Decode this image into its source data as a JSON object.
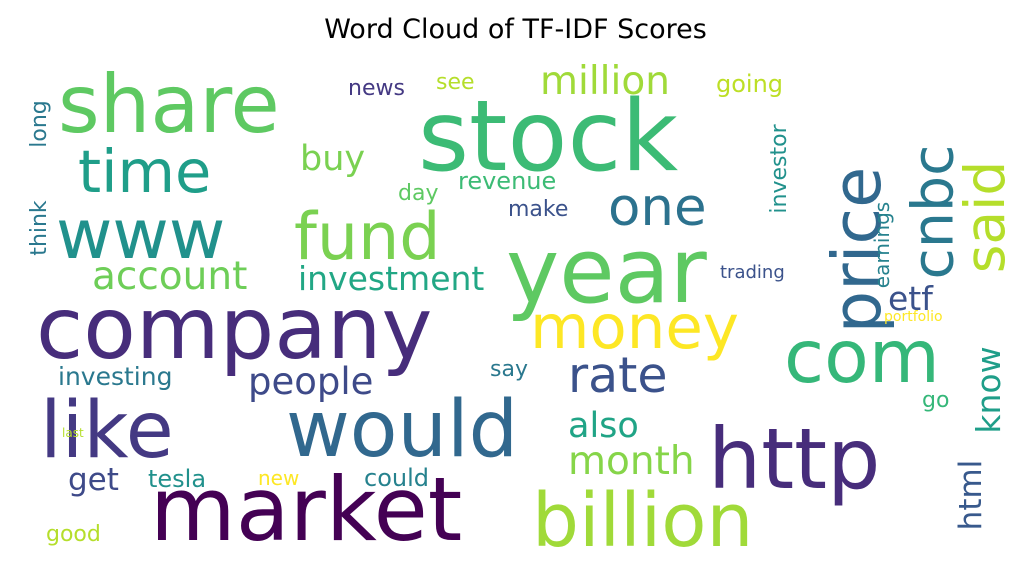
{
  "chart_data": {
    "type": "wordcloud",
    "title": "Word Cloud of TF-IDF Scores",
    "colormap": "viridis",
    "background": "#ffffff",
    "words": [
      {
        "text": "stock",
        "weight": 1.0,
        "color": "#3cbb75",
        "orientation": "horizontal"
      },
      {
        "text": "year",
        "weight": 0.92,
        "color": "#5ec962",
        "orientation": "horizontal"
      },
      {
        "text": "market",
        "weight": 0.9,
        "color": "#440154",
        "orientation": "horizontal"
      },
      {
        "text": "company",
        "weight": 0.88,
        "color": "#472d7b",
        "orientation": "horizontal"
      },
      {
        "text": "http",
        "weight": 0.86,
        "color": "#472d7b",
        "orientation": "horizontal"
      },
      {
        "text": "share",
        "weight": 0.82,
        "color": "#5ec962",
        "orientation": "horizontal"
      },
      {
        "text": "would",
        "weight": 0.8,
        "color": "#31688e",
        "orientation": "horizontal"
      },
      {
        "text": "like",
        "weight": 0.8,
        "color": "#443983",
        "orientation": "horizontal"
      },
      {
        "text": "billion",
        "weight": 0.76,
        "color": "#a0da39",
        "orientation": "horizontal"
      },
      {
        "text": "com",
        "weight": 0.74,
        "color": "#35b779",
        "orientation": "horizontal"
      },
      {
        "text": "www",
        "weight": 0.7,
        "color": "#21918c",
        "orientation": "horizontal"
      },
      {
        "text": "price",
        "weight": 0.68,
        "color": "#31688e",
        "orientation": "vertical"
      },
      {
        "text": "fund",
        "weight": 0.66,
        "color": "#7ad151",
        "orientation": "horizontal"
      },
      {
        "text": "money",
        "weight": 0.62,
        "color": "#fde725",
        "orientation": "horizontal"
      },
      {
        "text": "time",
        "weight": 0.6,
        "color": "#1f9e89",
        "orientation": "horizontal"
      },
      {
        "text": "cnbc",
        "weight": 0.58,
        "color": "#2a788e",
        "orientation": "vertical"
      },
      {
        "text": "said",
        "weight": 0.56,
        "color": "#b5de2b",
        "orientation": "vertical"
      },
      {
        "text": "one",
        "weight": 0.54,
        "color": "#2c728e",
        "orientation": "horizontal"
      },
      {
        "text": "rate",
        "weight": 0.5,
        "color": "#3b528b",
        "orientation": "horizontal"
      },
      {
        "text": "account",
        "weight": 0.4,
        "color": "#6ece58",
        "orientation": "horizontal"
      },
      {
        "text": "million",
        "weight": 0.4,
        "color": "#a0da39",
        "orientation": "horizontal"
      },
      {
        "text": "month",
        "weight": 0.4,
        "color": "#86d549",
        "orientation": "horizontal"
      },
      {
        "text": "people",
        "weight": 0.38,
        "color": "#3e4a89",
        "orientation": "horizontal"
      },
      {
        "text": "buy",
        "weight": 0.36,
        "color": "#7ad151",
        "orientation": "horizontal"
      },
      {
        "text": "also",
        "weight": 0.36,
        "color": "#20a486",
        "orientation": "horizontal"
      },
      {
        "text": "investment",
        "weight": 0.34,
        "color": "#22a785",
        "orientation": "horizontal"
      },
      {
        "text": "etf",
        "weight": 0.34,
        "color": "#3b528b",
        "orientation": "horizontal"
      },
      {
        "text": "know",
        "weight": 0.34,
        "color": "#1f9e89",
        "orientation": "vertical"
      },
      {
        "text": "html",
        "weight": 0.32,
        "color": "#38598c",
        "orientation": "vertical"
      },
      {
        "text": "get",
        "weight": 0.32,
        "color": "#3e4a89",
        "orientation": "horizontal"
      },
      {
        "text": "investing",
        "weight": 0.26,
        "color": "#2a788e",
        "orientation": "horizontal"
      },
      {
        "text": "going",
        "weight": 0.24,
        "color": "#bddf26",
        "orientation": "horizontal"
      },
      {
        "text": "could",
        "weight": 0.24,
        "color": "#26828e",
        "orientation": "horizontal"
      },
      {
        "text": "tesla",
        "weight": 0.24,
        "color": "#21918c",
        "orientation": "horizontal"
      },
      {
        "text": "revenue",
        "weight": 0.24,
        "color": "#3cbb75",
        "orientation": "horizontal"
      },
      {
        "text": "see",
        "weight": 0.22,
        "color": "#b5de2b",
        "orientation": "horizontal"
      },
      {
        "text": "news",
        "weight": 0.22,
        "color": "#443983",
        "orientation": "horizontal"
      },
      {
        "text": "day",
        "weight": 0.22,
        "color": "#5ec962",
        "orientation": "horizontal"
      },
      {
        "text": "make",
        "weight": 0.22,
        "color": "#3b528b",
        "orientation": "horizontal"
      },
      {
        "text": "say",
        "weight": 0.22,
        "color": "#2a788e",
        "orientation": "horizontal"
      },
      {
        "text": "good",
        "weight": 0.22,
        "color": "#b5de2b",
        "orientation": "horizontal"
      },
      {
        "text": "go",
        "weight": 0.22,
        "color": "#35b779",
        "orientation": "horizontal"
      },
      {
        "text": "think",
        "weight": 0.22,
        "color": "#2a788e",
        "orientation": "vertical"
      },
      {
        "text": "long",
        "weight": 0.22,
        "color": "#2a788e",
        "orientation": "vertical"
      },
      {
        "text": "investor",
        "weight": 0.22,
        "color": "#21918c",
        "orientation": "vertical"
      },
      {
        "text": "earnings",
        "weight": 0.2,
        "color": "#26828e",
        "orientation": "vertical"
      },
      {
        "text": "new",
        "weight": 0.2,
        "color": "#fde725",
        "orientation": "horizontal"
      },
      {
        "text": "trading",
        "weight": 0.18,
        "color": "#3b528b",
        "orientation": "horizontal"
      },
      {
        "text": "portfolio",
        "weight": 0.14,
        "color": "#fde725",
        "orientation": "horizontal"
      },
      {
        "text": "last",
        "weight": 0.12,
        "color": "#b5de2b",
        "orientation": "horizontal"
      }
    ]
  }
}
